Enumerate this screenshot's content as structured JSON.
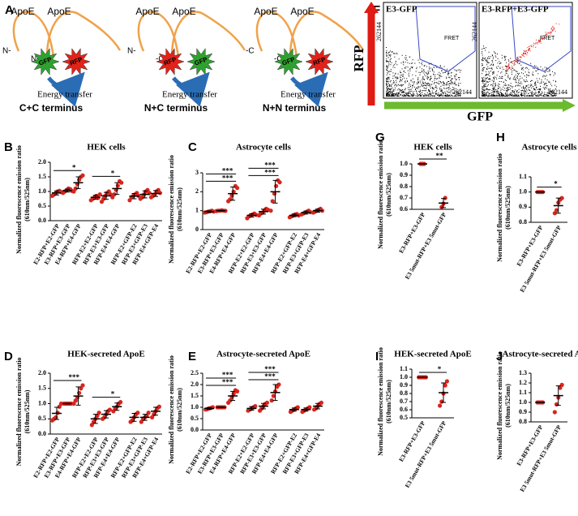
{
  "panel_a": {
    "label": "A",
    "constructs": [
      {
        "title": "C+C terminus",
        "apoe": [
          "ApoE",
          "ApoE"
        ],
        "ends": [
          "N-",
          "N-"
        ],
        "stars": [
          {
            "label": "GFP",
            "color": "#2fa12f"
          },
          {
            "label": "RFP",
            "color": "#e2231a"
          }
        ],
        "transfer": "Energy transfer"
      },
      {
        "title": "N+C terminus",
        "apoe": [
          "ApoE",
          "ApoE"
        ],
        "ends": [
          "N-",
          "-C"
        ],
        "stars": [
          {
            "label": "RFP",
            "color": "#e2231a"
          },
          {
            "label": "GFP",
            "color": "#2fa12f"
          }
        ],
        "transfer": "Energy transfer"
      },
      {
        "title": "N+N terminus",
        "apoe": [
          "ApoE",
          "ApoE"
        ],
        "ends": [
          "-C",
          "-C"
        ],
        "stars": [
          {
            "label": "GFP",
            "color": "#2fa12f"
          },
          {
            "label": "RFP",
            "color": "#e2231a"
          }
        ],
        "transfer": "Energy transfer"
      }
    ]
  },
  "panel_f": {
    "label": "F",
    "y_axis": "RFP",
    "x_axis": "GFP",
    "plots": [
      {
        "title": "E3-GFP",
        "gate": "FRET",
        "x_max": 262144,
        "y_max": 262144
      },
      {
        "title": "E3-RFP+E3-GFP",
        "gate": "FRET",
        "x_max": 262144,
        "y_max": 262144
      }
    ]
  },
  "chart_data": [
    {
      "type": "dotplot",
      "panel": "B",
      "title": "HEK cells",
      "y_label": [
        "Normalized fluorescence emission ratio",
        "(610nm/525nm)"
      ],
      "categories": [
        "E2-RFP+E2-GFP",
        "E3-RFP+E3-GFP",
        "E4-RFP+E4-GFP",
        "RFP-E2+E2-GFP",
        "RFP-E3+E3-GFP",
        "RFP-E4+E4-GFP",
        "RFP-E2+GFP-E2",
        "RFP-E3+GFP-E3",
        "RFP-E4+GFP-E4"
      ],
      "points": [
        [
          0.85,
          0.9,
          0.95,
          1.0,
          1.02,
          0.98
        ],
        [
          0.95,
          1.0,
          1.05,
          1.1,
          1.08,
          1.02
        ],
        [
          1.0,
          1.1,
          1.25,
          1.4,
          1.5,
          1.55
        ],
        [
          0.7,
          0.75,
          0.8,
          0.85,
          0.78,
          0.9
        ],
        [
          0.65,
          0.75,
          0.85,
          0.95,
          1.0,
          0.9
        ],
        [
          0.8,
          0.9,
          1.05,
          1.2,
          1.35,
          1.3
        ],
        [
          0.7,
          0.8,
          0.85,
          0.9,
          0.95,
          0.85
        ],
        [
          0.75,
          0.8,
          0.9,
          1.0,
          1.05,
          0.95
        ],
        [
          0.8,
          0.85,
          0.9,
          1.0,
          1.05,
          0.95
        ]
      ],
      "means": [
        0.95,
        1.03,
        1.3,
        0.8,
        0.85,
        1.1,
        0.84,
        0.9,
        0.93
      ],
      "errors": [
        0.07,
        0.05,
        0.2,
        0.07,
        0.12,
        0.2,
        0.09,
        0.12,
        0.1
      ],
      "point_color": "#d7261e",
      "ylim": [
        0,
        2
      ],
      "yticks": [
        {
          "value": 0,
          "label": "0.0"
        },
        {
          "value": 0.5,
          "label": "0.5"
        },
        {
          "value": 1,
          "label": "1.0"
        },
        {
          "value": 1.5,
          "label": "1.5"
        },
        {
          "value": 2,
          "label": "2.0"
        }
      ],
      "significance": [
        {
          "text": "*",
          "from": 0,
          "to": 2
        },
        {
          "text": "*",
          "from": 3,
          "to": 5
        }
      ]
    },
    {
      "type": "dotplot",
      "panel": "C",
      "title": "Astrocyte cells",
      "y_label": [
        "Normalized fluorescence emission ratio",
        "(610nm/525nm)"
      ],
      "categories": [
        "E2-RFP+E2-GFP",
        "E3-RFP+E3-GFP",
        "E4-RFP+E4-GFP",
        "RFP-E2+E2-GFP",
        "RFP-E3+E3-GFP",
        "RFP-E4+E4-GFP",
        "RFP-E2+GFP-E2",
        "RFP-E3+GFP-E3",
        "RFP-E4+GFP-E4"
      ],
      "points": [
        [
          0.9,
          0.92,
          0.95,
          0.97,
          1.0,
          0.95
        ],
        [
          0.98,
          1.0,
          1.0,
          1.02,
          1.0,
          0.99
        ],
        [
          1.5,
          1.6,
          1.8,
          2.0,
          2.3,
          2.2
        ],
        [
          0.6,
          0.7,
          0.75,
          0.8,
          0.85,
          0.78
        ],
        [
          0.75,
          0.85,
          0.9,
          1.0,
          1.1,
          1.05
        ],
        [
          1.0,
          1.5,
          1.9,
          2.3,
          2.6,
          2.5
        ],
        [
          0.65,
          0.7,
          0.75,
          0.8,
          0.82,
          0.75
        ],
        [
          0.8,
          0.85,
          0.9,
          0.95,
          1.0,
          0.92
        ],
        [
          0.9,
          0.95,
          1.0,
          1.05,
          1.1,
          1.0
        ]
      ],
      "means": [
        0.95,
        1.0,
        1.9,
        0.75,
        0.95,
        2.0,
        0.75,
        0.9,
        1.0
      ],
      "errors": [
        0.04,
        0.02,
        0.35,
        0.09,
        0.13,
        0.6,
        0.07,
        0.08,
        0.08
      ],
      "point_color": "#d7261e",
      "ylim": [
        0,
        3
      ],
      "yticks": [
        0,
        1,
        2,
        3
      ],
      "significance": [
        {
          "text": "***",
          "from": 0,
          "to": 2
        },
        {
          "text": "***",
          "from": 0,
          "to": 2
        },
        {
          "text": "***",
          "from": 3,
          "to": 5
        },
        {
          "text": "***",
          "from": 3,
          "to": 5
        }
      ]
    },
    {
      "type": "dotplot",
      "panel": "G",
      "title": "HEK cells",
      "y_label": [
        "Normalized fluorescence emission ratio",
        "(610nm/525nm)"
      ],
      "categories": [
        "E3-RFP+E3-GFP",
        "E3 5mut-RFP+E3 5mut-GFP"
      ],
      "points": [
        [
          1.0,
          1.0,
          1.0
        ],
        [
          0.62,
          0.65,
          0.7
        ]
      ],
      "means": [
        1.0,
        0.655
      ],
      "errors": [
        0,
        0.04
      ],
      "point_color": "#d7261e",
      "ylim": [
        0.6,
        1.0
      ],
      "yticks": [
        0.6,
        0.7,
        0.8,
        0.9,
        {
          "value": 1.0,
          "label": "1.0"
        }
      ],
      "significance": [
        {
          "text": "**",
          "from": 0,
          "to": 1
        }
      ]
    },
    {
      "type": "dotplot",
      "panel": "H",
      "title": "Astrocyte cells",
      "y_label": [
        "Normalized fluorescence emission ratio",
        "(610nm/525nm)"
      ],
      "categories": [
        "E3-RFP+E3-GFP",
        "E3 5mut-RFP+E3 5mut-GFP"
      ],
      "points": [
        [
          1.0,
          1.0,
          1.0,
          1.0
        ],
        [
          0.86,
          0.88,
          0.93,
          0.95,
          0.96
        ]
      ],
      "means": [
        1.0,
        0.91
      ],
      "errors": [
        0,
        0.05
      ],
      "point_color": "#d7261e",
      "ylim": [
        0.8,
        1.1
      ],
      "yticks": [
        0.8,
        0.9,
        {
          "value": 1.0,
          "label": "1.0"
        },
        1.1
      ],
      "significance": [
        {
          "text": "*",
          "from": 0,
          "to": 1
        }
      ]
    },
    {
      "type": "dotplot",
      "panel": "D",
      "title": "HEK-secreted ApoE",
      "y_label": [
        "Normalized fluorescence emission ratio",
        "(610nm/525nm)"
      ],
      "categories": [
        "E2-RFP+E2-GFP",
        "E3-RFP+E3-GFP",
        "E4-RFP+E4-GFP",
        "RFP-E2+E2-GFP",
        "RFP-E3+E3-GFP",
        "RFP-E4+E4-GFP",
        "RFP-E2+GFP-E2",
        "RFP-E3+GFP-E3",
        "RFP-E4+GFP-E4"
      ],
      "points": [
        [
          0.45,
          0.5,
          0.55,
          0.7,
          0.9,
          1.0
        ],
        [
          1.0,
          1.0,
          1.0,
          1.0,
          1.0
        ],
        [
          1.0,
          1.1,
          1.2,
          1.35,
          1.5,
          1.6
        ],
        [
          0.3,
          0.4,
          0.5,
          0.6,
          0.7
        ],
        [
          0.5,
          0.55,
          0.65,
          0.75,
          0.8
        ],
        [
          0.75,
          0.85,
          0.9,
          1.0,
          1.05
        ],
        [
          0.4,
          0.45,
          0.55,
          0.65,
          0.7
        ],
        [
          0.4,
          0.5,
          0.55,
          0.6,
          0.7
        ],
        [
          0.55,
          0.65,
          0.75,
          0.85,
          0.9
        ]
      ],
      "means": [
        0.68,
        1.0,
        1.25,
        0.5,
        0.65,
        0.9,
        0.55,
        0.55,
        0.75
      ],
      "errors": [
        0.2,
        0.01,
        0.3,
        0.15,
        0.12,
        0.12,
        0.13,
        0.1,
        0.13
      ],
      "point_color": "#d7261e",
      "ylim": [
        0,
        2
      ],
      "yticks": [
        {
          "value": 0,
          "label": "0.0"
        },
        {
          "value": 0.5,
          "label": "0.5"
        },
        {
          "value": 1,
          "label": "1.0"
        },
        {
          "value": 1.5,
          "label": "1.5"
        },
        {
          "value": 2,
          "label": "2.0"
        }
      ],
      "significance": [
        {
          "text": "***",
          "from": 0,
          "to": 2
        },
        {
          "text": "*",
          "from": 3,
          "to": 5
        }
      ]
    },
    {
      "type": "dotplot",
      "panel": "E",
      "title": "Astrocyte-secreted ApoE",
      "y_label": [
        "Normalized fluorescence emission ratio",
        "(610nm/525nm)"
      ],
      "categories": [
        "E2-RFP+E2-GFP",
        "E3-RFP+E3-GFP",
        "E4-RFP+E4-GFP",
        "RFP-E2+E2-GFP",
        "RFP-E3+E3-GFP",
        "RFP-E4+E4-GFP",
        "RFP-E2+GFP-E2",
        "RFP-E3+GFP-E3",
        "RFP-E4+GFP-E4"
      ],
      "points": [
        [
          0.9,
          0.92,
          0.95,
          0.97,
          1.0
        ],
        [
          1.0,
          1.0,
          1.0,
          1.0,
          1.0
        ],
        [
          1.2,
          1.3,
          1.45,
          1.6,
          1.75,
          1.7
        ],
        [
          0.85,
          0.9,
          0.95,
          1.0,
          1.05
        ],
        [
          0.85,
          0.95,
          1.05,
          1.15,
          1.2
        ],
        [
          1.3,
          1.5,
          1.7,
          1.9,
          2.0
        ],
        [
          0.8,
          0.85,
          0.9,
          0.95,
          1.0
        ],
        [
          0.8,
          0.85,
          0.9,
          0.95,
          1.0
        ],
        [
          0.9,
          0.95,
          1.05,
          1.15,
          1.2
        ]
      ],
      "means": [
        0.95,
        1.0,
        1.5,
        0.95,
        1.05,
        1.65,
        0.9,
        0.9,
        1.05
      ],
      "errors": [
        0.04,
        0.02,
        0.2,
        0.08,
        0.12,
        0.35,
        0.07,
        0.07,
        0.12
      ],
      "point_color": "#d7261e",
      "ylim": [
        0,
        2.5
      ],
      "yticks": [
        {
          "value": 0,
          "label": "0.0"
        },
        {
          "value": 0.5,
          "label": "0.5"
        },
        {
          "value": 1,
          "label": "1.0"
        },
        {
          "value": 1.5,
          "label": "1.5"
        },
        {
          "value": 2,
          "label": "2.0"
        },
        2.5
      ],
      "significance": [
        {
          "text": "***",
          "from": 0,
          "to": 2
        },
        {
          "text": "***",
          "from": 0,
          "to": 2
        },
        {
          "text": "***",
          "from": 3,
          "to": 5
        },
        {
          "text": "***",
          "from": 3,
          "to": 5
        }
      ]
    },
    {
      "type": "dotplot",
      "panel": "I",
      "title": "HEK-secreted ApoE",
      "y_label": [
        "Normalized fluorescence emission ratio",
        "(610nm/525nm)"
      ],
      "categories": [
        "E3-RFP+E3-GFP",
        "E3 5mut-RFP+E3 5mut-GFP"
      ],
      "points": [
        [
          1.0,
          1.0,
          1.0,
          1.0,
          1.0
        ],
        [
          0.65,
          0.7,
          0.8,
          0.9,
          0.95
        ]
      ],
      "means": [
        1.0,
        0.81
      ],
      "errors": [
        0,
        0.12
      ],
      "point_color": "#d7261e",
      "ylim": [
        0.5,
        1.1
      ],
      "yticks": [
        0.5,
        0.6,
        0.7,
        0.8,
        0.9,
        {
          "value": 1.0,
          "label": "1.0"
        },
        1.1
      ],
      "significance": [
        {
          "text": "*",
          "from": 0,
          "to": 1
        }
      ]
    },
    {
      "type": "dotplot",
      "panel": "J",
      "title": "Astrocyte-secreted ApoE",
      "y_label": [
        "Normalized fluorescence emission ratio",
        "(610nm/525nm)"
      ],
      "categories": [
        "E3-RFP+E3-GFP",
        "E3 5mut-RFP+E3 5mut-GFP"
      ],
      "points": [
        [
          1.0,
          1.0,
          1.0,
          1.0
        ],
        [
          0.9,
          0.98,
          1.05,
          1.15,
          1.18
        ]
      ],
      "means": [
        1.0,
        1.07
      ],
      "errors": [
        0,
        0.1
      ],
      "point_color": "#d7261e",
      "ylim": [
        0.8,
        1.3
      ],
      "yticks": [
        0.8,
        0.9,
        {
          "value": 1.0,
          "label": "1.0"
        },
        1.1,
        1.2,
        1.3
      ],
      "significance": []
    }
  ]
}
